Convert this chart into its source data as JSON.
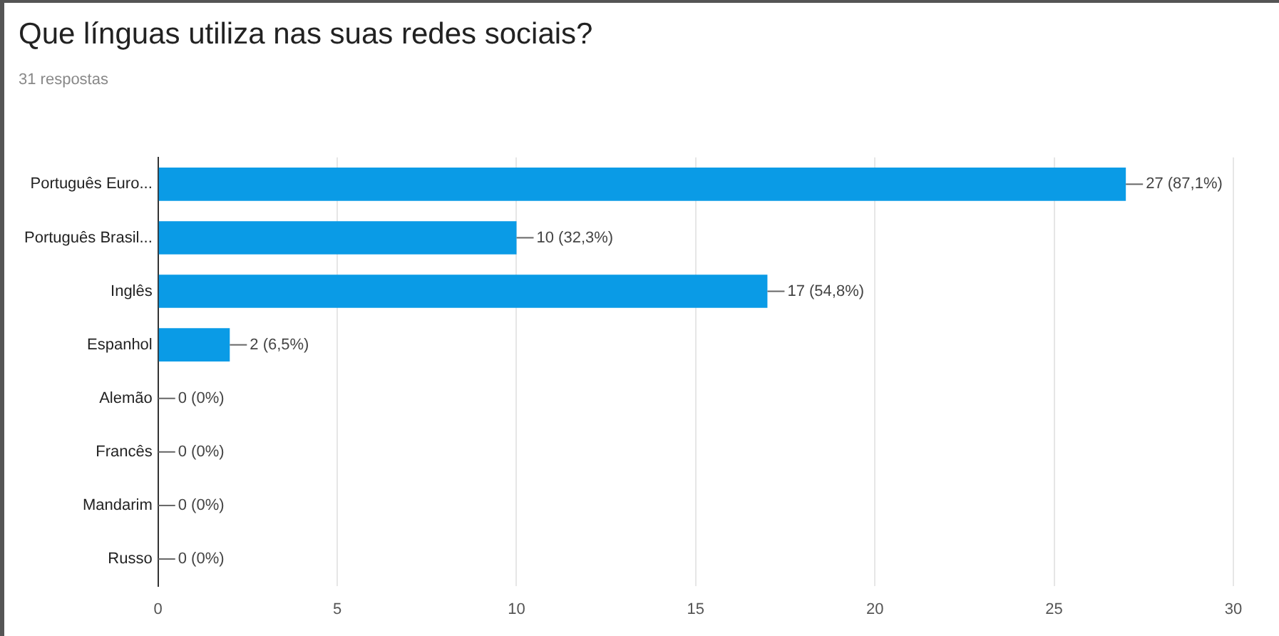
{
  "chart_data": {
    "type": "bar",
    "orientation": "horizontal",
    "title": "Que línguas utiliza nas suas redes sociais?",
    "subtitle": "31 respostas",
    "categories": [
      "Português Euro...",
      "Português Brasil...",
      "Inglês",
      "Espanhol",
      "Alemão",
      "Francês",
      "Mandarim",
      "Russo"
    ],
    "values": [
      27,
      10,
      17,
      2,
      0,
      0,
      0,
      0
    ],
    "value_labels": [
      "27 (87,1%)",
      "10 (32,3%)",
      "17 (54,8%)",
      "2 (6,5%)",
      "0 (0%)",
      "0 (0%)",
      "0 (0%)",
      "0 (0%)"
    ],
    "color": "#0a9be6",
    "xlim": [
      0,
      30
    ],
    "xticks": [
      0,
      5,
      10,
      15,
      20,
      25,
      30
    ],
    "grid": "x",
    "legend": false
  }
}
